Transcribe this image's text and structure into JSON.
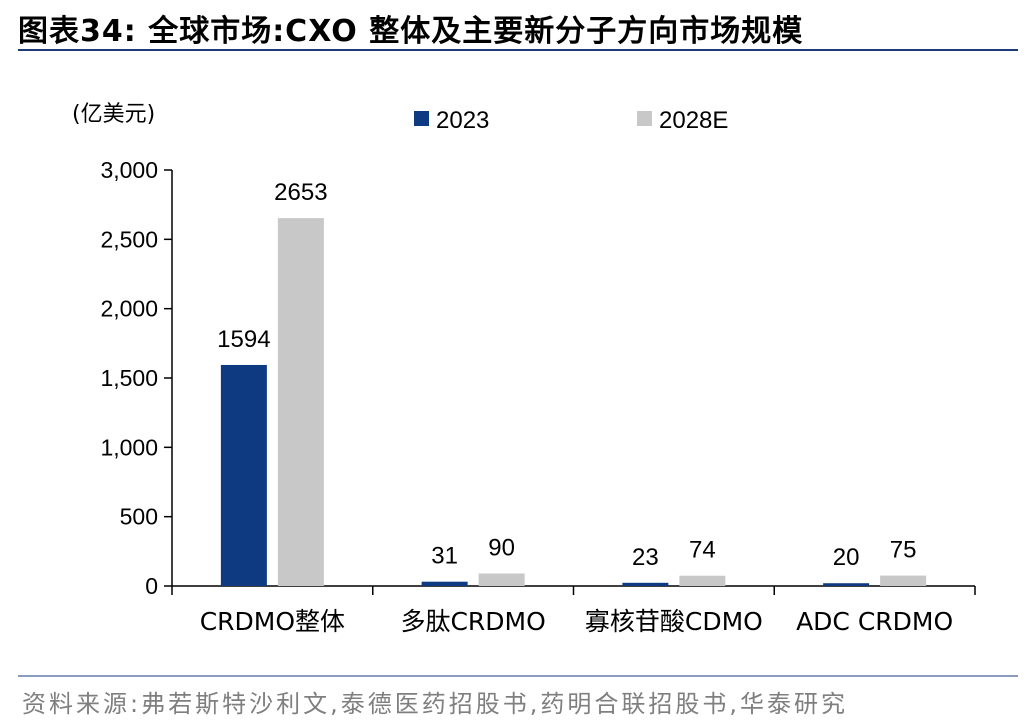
{
  "header": {
    "title": "图表34:  全球市场:CXO 整体及主要新分子方向市场规模"
  },
  "footer": {
    "source": "资料来源:弗若斯特沙利文,泰德医药招股书,药明合联招股书,华泰研究"
  },
  "chart_data": {
    "type": "bar",
    "unit_label": "(亿美元)",
    "categories": [
      "CRDMO整体",
      "多肽CRDMO",
      "寡核苷酸CDMO",
      "ADC CRDMO"
    ],
    "series": [
      {
        "name": "2023",
        "values": [
          1594,
          31,
          23,
          20
        ],
        "color": "#0d3a80"
      },
      {
        "name": "2028E",
        "values": [
          2653,
          90,
          74,
          75
        ],
        "color": "#c8c8c8"
      }
    ],
    "ylim": [
      0,
      3000
    ],
    "yticks": [
      0,
      500,
      1000,
      1500,
      2000,
      2500,
      3000
    ],
    "ytick_labels": [
      "0",
      "500",
      "1,000",
      "1,500",
      "2,000",
      "2,500",
      "3,000"
    ],
    "data_labels": true,
    "grid": false,
    "legend_position": "top"
  }
}
